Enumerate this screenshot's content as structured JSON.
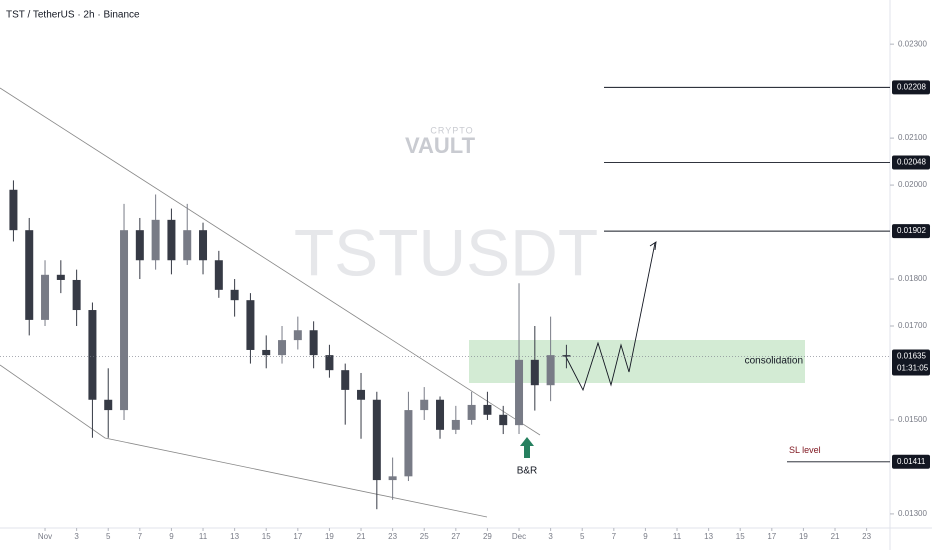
{
  "chart_data": {
    "type": "candlestick",
    "title": "TST / TetherUS · 2h · Binance",
    "watermark": "TSTUSDT",
    "logo": {
      "main": "VAULT",
      "sub": "CRYPTO"
    },
    "x": [
      -2,
      -1,
      0,
      1,
      2,
      3,
      4,
      5,
      6,
      7,
      8,
      9,
      10,
      11,
      12,
      13,
      14,
      15,
      16,
      17,
      18,
      19,
      20,
      21,
      22,
      23,
      24,
      25,
      26,
      27,
      28,
      29,
      30,
      31,
      32,
      33
    ],
    "open": [
      0.0199,
      0.01904,
      0.01713,
      0.01809,
      0.01798,
      0.01734,
      0.01543,
      0.01521,
      0.01904,
      0.0184,
      0.01926,
      0.0184,
      0.01904,
      0.0184,
      0.01777,
      0.01755,
      0.01649,
      0.01638,
      0.0167,
      0.01691,
      0.01638,
      0.01606,
      0.01564,
      0.01543,
      0.01372,
      0.0138,
      0.01521,
      0.01543,
      0.01479,
      0.015,
      0.01532,
      0.01511,
      0.01489,
      0.01628,
      0.01574,
      0.01638
    ],
    "high": [
      0.0201,
      0.0193,
      0.0184,
      0.0184,
      0.0182,
      0.0175,
      0.0161,
      0.0196,
      0.0193,
      0.0198,
      0.0195,
      0.0196,
      0.0192,
      0.0186,
      0.018,
      0.0177,
      0.0168,
      0.017,
      0.0172,
      0.0171,
      0.0166,
      0.0162,
      0.016,
      0.0156,
      0.0142,
      0.0156,
      0.0157,
      0.0155,
      0.0153,
      0.0156,
      0.0156,
      0.0153,
      0.01791,
      0.017,
      0.0172,
      0.0166
    ],
    "low": [
      0.0188,
      0.0168,
      0.017,
      0.0177,
      0.017,
      0.01462,
      0.01462,
      0.015,
      0.018,
      0.0182,
      0.0181,
      0.0183,
      0.0181,
      0.0176,
      0.0172,
      0.0162,
      0.0161,
      0.0162,
      0.0165,
      0.0161,
      0.0159,
      0.0149,
      0.0146,
      0.0131,
      0.0133,
      0.0137,
      0.015,
      0.0146,
      0.0147,
      0.0149,
      0.015,
      0.0147,
      0.0147,
      0.0152,
      0.0154,
      0.0161
    ],
    "close": [
      0.01904,
      0.01713,
      0.01809,
      0.01798,
      0.01734,
      0.01543,
      0.01521,
      0.01904,
      0.0184,
      0.01926,
      0.0184,
      0.01904,
      0.0184,
      0.01777,
      0.01755,
      0.01649,
      0.01638,
      0.0167,
      0.01691,
      0.01638,
      0.01606,
      0.01564,
      0.01543,
      0.01372,
      0.0138,
      0.01521,
      0.01543,
      0.01479,
      0.015,
      0.01532,
      0.01511,
      0.01489,
      0.01628,
      0.01574,
      0.01638,
      0.01635
    ],
    "up_color": "#787b86",
    "down_color": "#363a45",
    "xlim": [
      -2.85,
      53.48
    ],
    "ylim": [
      0.0127,
      0.02394
    ],
    "xticks": [
      {
        "value": 0,
        "label": "Nov"
      },
      {
        "value": 2,
        "label": "3"
      },
      {
        "value": 4,
        "label": "5"
      },
      {
        "value": 6,
        "label": "7"
      },
      {
        "value": 8,
        "label": "9"
      },
      {
        "value": 10,
        "label": "11"
      },
      {
        "value": 12,
        "label": "13"
      },
      {
        "value": 14,
        "label": "15"
      },
      {
        "value": 16,
        "label": "17"
      },
      {
        "value": 18,
        "label": "19"
      },
      {
        "value": 20,
        "label": "21"
      },
      {
        "value": 22,
        "label": "23"
      },
      {
        "value": 24,
        "label": "25"
      },
      {
        "value": 26,
        "label": "27"
      },
      {
        "value": 28,
        "label": "29"
      },
      {
        "value": 30,
        "label": "Dec"
      },
      {
        "value": 32,
        "label": "3"
      },
      {
        "value": 34,
        "label": "5"
      },
      {
        "value": 36,
        "label": "7"
      },
      {
        "value": 38,
        "label": "9"
      },
      {
        "value": 40,
        "label": "11"
      },
      {
        "value": 42,
        "label": "13"
      },
      {
        "value": 44,
        "label": "15"
      },
      {
        "value": 46,
        "label": "17"
      },
      {
        "value": 48,
        "label": "19"
      },
      {
        "value": 50,
        "label": "21"
      },
      {
        "value": 52,
        "label": "23"
      }
    ],
    "yticks": [
      {
        "value": 0.023,
        "label": "0.02300"
      },
      {
        "value": 0.021,
        "label": "0.02100"
      },
      {
        "value": 0.02,
        "label": "0.02000"
      },
      {
        "value": 0.018,
        "label": "0.01800"
      },
      {
        "value": 0.017,
        "label": "0.01700"
      },
      {
        "value": 0.015,
        "label": "0.01500"
      },
      {
        "value": 0.013,
        "label": "0.01300"
      }
    ],
    "levels": [
      {
        "value": 0.02208,
        "label": "0.02208"
      },
      {
        "value": 0.02048,
        "label": "0.02048"
      },
      {
        "value": 0.01902,
        "label": "0.01902"
      },
      {
        "value": 0.01411,
        "label": "0.01411",
        "text": "SL level"
      }
    ],
    "last_price": {
      "value": 0.01635,
      "label": "0.01635",
      "countdown": "01:31:05"
    },
    "annotations": {
      "zone": "consolidation",
      "signal": "B&R"
    }
  }
}
